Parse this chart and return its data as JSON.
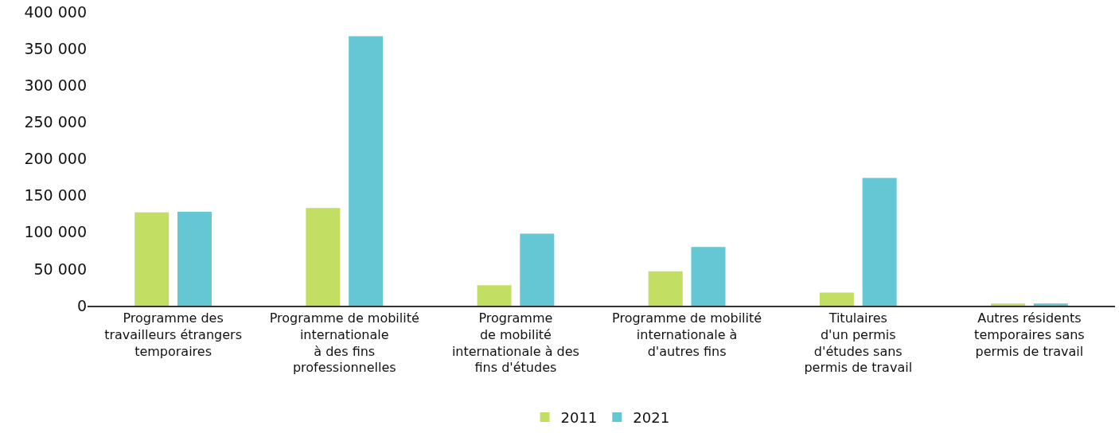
{
  "chart_data": {
    "type": "bar",
    "categories": [
      "Programme des\ntravailleurs étrangers\ntemporaires",
      "Programme de mobilité\ninternationale\nà des fins\nprofessionnelles",
      "Programme\nde mobilité\ninternationale à des\nfins d'études",
      "Programme de mobilité\ninternationale à\nd'autres fins",
      "Titulaires\nd'un permis\nd'études sans\npermis de travail",
      "Autres résidents\ntemporaires sans\npermis de travail"
    ],
    "series": [
      {
        "name": "2011",
        "color": "#c2df63",
        "values": [
          127000,
          133000,
          28000,
          47000,
          18000,
          3000
        ]
      },
      {
        "name": "2021",
        "color": "#66c7d4",
        "values": [
          128000,
          367000,
          98000,
          80000,
          174000,
          3000
        ]
      }
    ],
    "ylim": [
      0,
      400000
    ],
    "yticks": [
      0,
      {
        "value": 50000,
        "label": "50 000"
      },
      {
        "value": 100000,
        "label": "100 000"
      },
      {
        "value": 150000,
        "label": "150 000"
      },
      {
        "value": 200000,
        "label": "200 000"
      },
      {
        "value": 250000,
        "label": "250 000"
      },
      {
        "value": 300000,
        "label": "300 000"
      },
      {
        "value": 350000,
        "label": "350 000"
      },
      {
        "value": 400000,
        "label": "400 000"
      }
    ],
    "grid": false,
    "legend": "bottom"
  }
}
